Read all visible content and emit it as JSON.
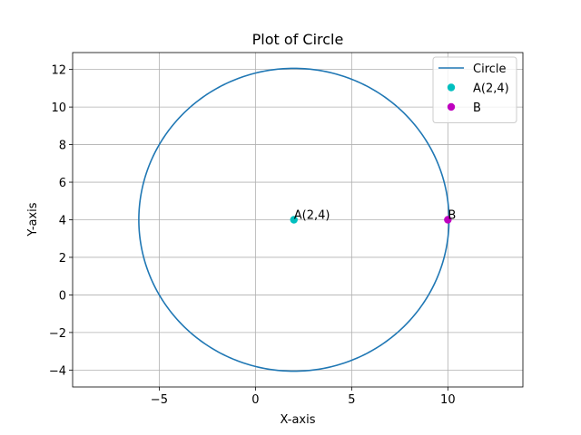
{
  "chart_data": {
    "type": "line",
    "title": "Plot of Circle",
    "xlabel": "X-axis",
    "ylabel": "Y-axis",
    "xlim": [
      -9.5,
      13.9
    ],
    "ylim": [
      -4.9,
      12.9
    ],
    "xticks": [
      -5,
      0,
      5,
      10
    ],
    "yticks": [
      -4,
      -2,
      0,
      2,
      4,
      6,
      8,
      10,
      12
    ],
    "xtick_labels": [
      "−5",
      "0",
      "5",
      "10"
    ],
    "ytick_labels": [
      "−4",
      "−2",
      "0",
      "2",
      "4",
      "6",
      "8",
      "10",
      "12"
    ],
    "grid": true,
    "legend_position": "top-right",
    "series": [
      {
        "name": "Circle",
        "kind": "circle",
        "center": [
          2,
          4
        ],
        "radius": 8.06,
        "color": "#1f77b4"
      },
      {
        "name": "A(2,4)",
        "kind": "point",
        "x": 2,
        "y": 4,
        "color": "#00bfbf"
      },
      {
        "name": "B",
        "kind": "point",
        "x": 10,
        "y": 4,
        "color": "#bf00bf"
      }
    ],
    "annotations": [
      {
        "text": "A(2,4)",
        "x": 2,
        "y": 4
      },
      {
        "text": "B",
        "x": 10,
        "y": 4
      }
    ]
  }
}
